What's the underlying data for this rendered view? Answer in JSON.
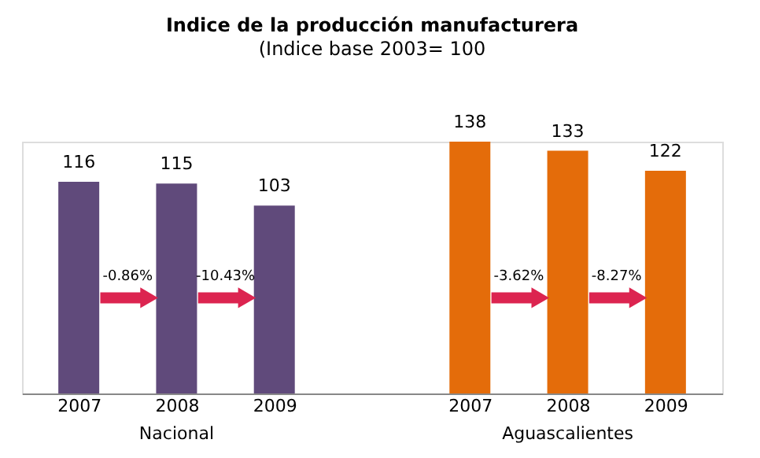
{
  "chart_data": {
    "type": "bar",
    "title": "Indice de la producción manufacturera",
    "subtitle": "(Indice base 2003= 100",
    "categories": [
      "2007",
      "2008",
      "2009",
      null,
      "2007",
      "2008",
      "2009"
    ],
    "values": [
      116,
      115,
      103,
      null,
      138,
      133,
      122
    ],
    "colors": [
      "#604a7b",
      "#604a7b",
      "#604a7b",
      null,
      "#e46c0a",
      "#e46c0a",
      "#e46c0a"
    ],
    "data_labels": true,
    "annotations": [
      "-0.86%",
      "-10.43%",
      "-3.62%",
      "-8.27%",
      "Nacional",
      "Aguascalientes"
    ],
    "tick_labels": "x"
  }
}
